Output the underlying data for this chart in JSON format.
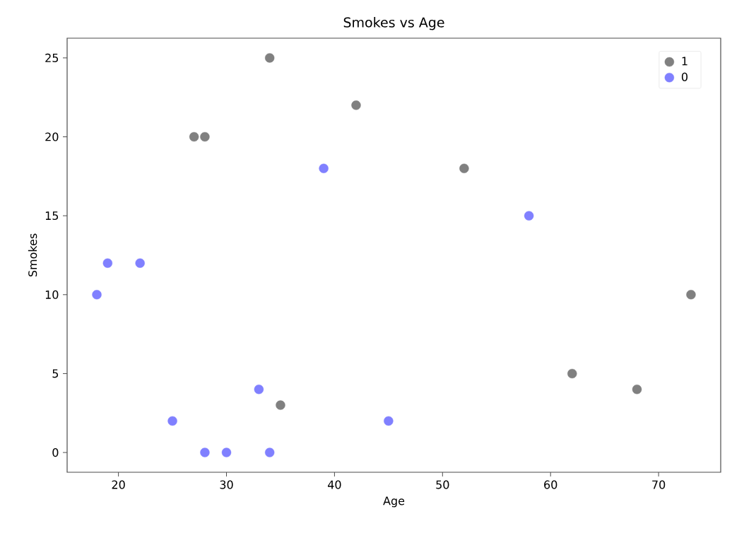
{
  "chart_data": {
    "type": "scatter",
    "title": "Smokes vs Age",
    "xlabel": "Age",
    "ylabel": "Smokes",
    "series": [
      {
        "name": "1",
        "color": "#808080",
        "x": [
          34,
          42,
          27,
          28,
          52,
          73,
          62,
          68,
          35
        ],
        "values": [
          25,
          22,
          20,
          20,
          18,
          10,
          5,
          4,
          3
        ]
      },
      {
        "name": "0",
        "color": "#8080ff",
        "x": [
          39,
          58,
          19,
          22,
          18,
          33,
          25,
          45,
          28,
          30,
          34
        ],
        "values": [
          18,
          15,
          12,
          12,
          10,
          4,
          2,
          2,
          0,
          0,
          0
        ]
      }
    ],
    "xlim": [
      15.25,
      75.75
    ],
    "ylim": [
      -1.25,
      26.25
    ],
    "xticks": [
      20,
      30,
      40,
      50,
      60,
      70
    ],
    "yticks": [
      0,
      5,
      10,
      15,
      20,
      25
    ],
    "legend": "top right",
    "grid": false
  }
}
